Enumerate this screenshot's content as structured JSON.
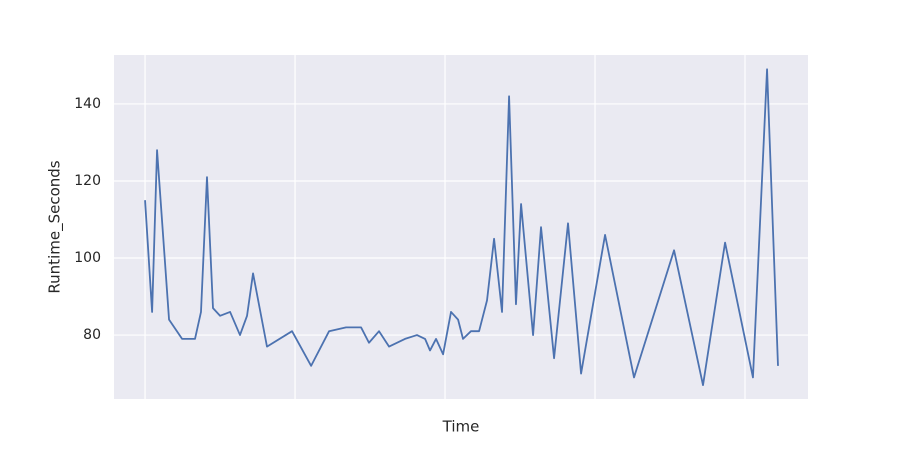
{
  "chart_data": {
    "type": "line",
    "xlabel": "Time",
    "ylabel": "Runtime_Seconds",
    "x": [
      0,
      0.047,
      0.08,
      0.16,
      0.247,
      0.333,
      0.373,
      0.413,
      0.453,
      0.5,
      0.567,
      0.633,
      0.68,
      0.72,
      0.813,
      0.98,
      1.107,
      1.227,
      1.34,
      1.44,
      1.493,
      1.56,
      1.627,
      1.733,
      1.813,
      1.867,
      1.9,
      1.94,
      1.987,
      2.04,
      2.087,
      2.12,
      2.173,
      2.227,
      2.28,
      2.327,
      2.38,
      2.427,
      2.473,
      2.507,
      2.587,
      2.64,
      2.727,
      2.82,
      2.907,
      3.067,
      3.26,
      3.527,
      3.72,
      3.867,
      4.053,
      4.147,
      4.22
    ],
    "values": [
      115,
      86,
      128,
      84,
      79,
      79,
      86,
      121,
      87,
      85,
      86,
      80,
      85,
      96,
      77,
      81,
      72,
      81,
      82,
      82,
      78,
      81,
      77,
      79,
      80,
      79,
      76,
      79,
      75,
      86,
      84,
      79,
      81,
      81,
      89,
      105,
      86,
      142,
      88,
      114,
      80,
      108,
      74,
      109,
      70,
      106,
      69,
      102,
      67,
      104,
      69,
      149,
      72
    ],
    "color": "#4c72b0",
    "xlim": [
      -0.207,
      4.42
    ],
    "xgrid": [
      0,
      1,
      2,
      3,
      4
    ],
    "ylim": [
      63.4,
      152.7
    ],
    "yticks": [
      80,
      100,
      120,
      140
    ],
    "grid": true
  }
}
